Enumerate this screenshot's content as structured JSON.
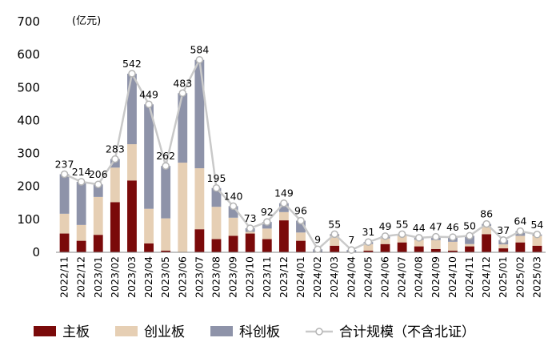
{
  "chart_data": {
    "type": "bar",
    "stacked": true,
    "unit_label": "(亿元)",
    "ylim": [
      0,
      700
    ],
    "yticks": [
      0,
      100,
      200,
      300,
      400,
      500,
      600,
      700
    ],
    "categories": [
      "2022/11",
      "2022/12",
      "2023/01",
      "2023/02",
      "2023/03",
      "2023/04",
      "2023/05",
      "2023/06",
      "2023/07",
      "2023/08",
      "2023/09",
      "2023/10",
      "2023/11",
      "2023/12",
      "2024/01",
      "2024/02",
      "2024/03",
      "2024/04",
      "2024/05",
      "2024/06",
      "2024/07",
      "2024/08",
      "2024/09",
      "2024/10",
      "2024/11",
      "2024/12",
      "2025/01",
      "2025/02",
      "2025/03"
    ],
    "series": [
      {
        "name": "主板",
        "kind": "bar",
        "color": "#7a0a0a",
        "values": [
          57,
          35,
          53,
          152,
          218,
          27,
          5,
          0,
          70,
          40,
          50,
          57,
          40,
          97,
          35,
          0,
          20,
          0,
          5,
          25,
          30,
          18,
          10,
          5,
          18,
          55,
          12,
          30,
          20
        ]
      },
      {
        "name": "创业板",
        "kind": "bar",
        "color": "#e6cfb4",
        "values": [
          60,
          48,
          115,
          105,
          110,
          105,
          98,
          272,
          185,
          98,
          55,
          5,
          32,
          25,
          25,
          0,
          30,
          0,
          20,
          17,
          20,
          20,
          27,
          27,
          7,
          25,
          12,
          20,
          30
        ]
      },
      {
        "name": "科创板",
        "kind": "bar",
        "color": "#8e93a9",
        "values": [
          120,
          131,
          38,
          26,
          214,
          317,
          159,
          211,
          329,
          57,
          35,
          11,
          20,
          27,
          36,
          9,
          5,
          7,
          6,
          7,
          5,
          6,
          10,
          14,
          25,
          6,
          13,
          14,
          4
        ]
      },
      {
        "name": "合计规模（不含北证）",
        "kind": "line",
        "color": "#c9c9c9",
        "values": [
          237,
          214,
          206,
          283,
          542,
          449,
          262,
          483,
          584,
          195,
          140,
          73,
          92,
          149,
          96,
          9,
          55,
          7,
          31,
          49,
          55,
          44,
          47,
          46,
          50,
          86,
          37,
          64,
          54
        ]
      }
    ],
    "legend_position": "bottom"
  }
}
